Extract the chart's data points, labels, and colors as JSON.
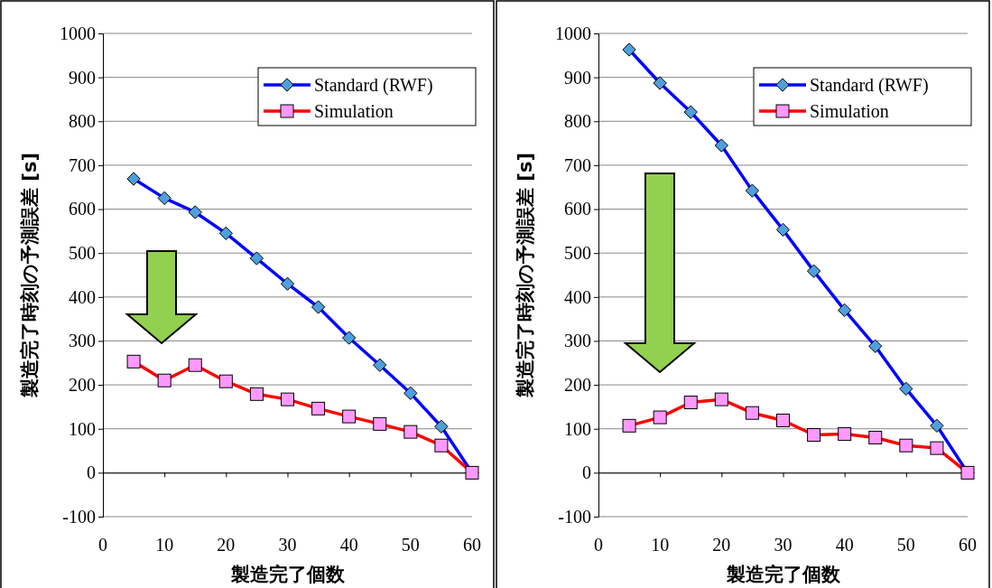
{
  "chart_data": [
    {
      "type": "line",
      "xlabel": "製造完了個数",
      "ylabel": "製造完了時刻の予測誤差 [s]",
      "x": [
        5,
        10,
        15,
        20,
        25,
        30,
        35,
        40,
        45,
        50,
        55,
        60
      ],
      "xlim": [
        0,
        60
      ],
      "xticks": [
        0,
        10,
        20,
        30,
        40,
        50,
        60
      ],
      "ylim": [
        -100,
        1000
      ],
      "yticks": [
        -100,
        0,
        100,
        200,
        300,
        400,
        500,
        600,
        700,
        800,
        900,
        1000
      ],
      "grid": "y",
      "legend": "top right",
      "line_style": "solid",
      "series": [
        {
          "name": "Standard (RWF)",
          "color": "#0000ff",
          "marker": "diamond",
          "values": [
            669,
            625,
            593,
            545,
            488,
            430,
            377,
            307,
            245,
            181,
            105,
            0
          ]
        },
        {
          "name": "Simulation",
          "color": "#ff0000",
          "marker": "square",
          "values": [
            253,
            210,
            245,
            208,
            179,
            167,
            146,
            128,
            111,
            93,
            62,
            0
          ]
        }
      ]
    },
    {
      "type": "line",
      "xlabel": "製造完了個数",
      "ylabel": "製造完了時刻の予測誤差 [s]",
      "x": [
        5,
        10,
        15,
        20,
        25,
        30,
        35,
        40,
        45,
        50,
        55,
        60
      ],
      "xlim": [
        0,
        60
      ],
      "xticks": [
        0,
        10,
        20,
        30,
        40,
        50,
        60
      ],
      "ylim": [
        -100,
        1000
      ],
      "yticks": [
        -100,
        0,
        100,
        200,
        300,
        400,
        500,
        600,
        700,
        800,
        900,
        1000
      ],
      "grid": "y",
      "legend": "top right",
      "line_style": "solid",
      "series": [
        {
          "name": "Standard (RWF)",
          "color": "#0000ff",
          "marker": "diamond",
          "values": [
            963,
            887,
            821,
            745,
            642,
            553,
            459,
            370,
            288,
            191,
            107,
            0
          ]
        },
        {
          "name": "Simulation",
          "color": "#ff0000",
          "marker": "square",
          "values": [
            107,
            126,
            160,
            167,
            136,
            119,
            86,
            88,
            80,
            62,
            56,
            0
          ]
        }
      ]
    }
  ]
}
